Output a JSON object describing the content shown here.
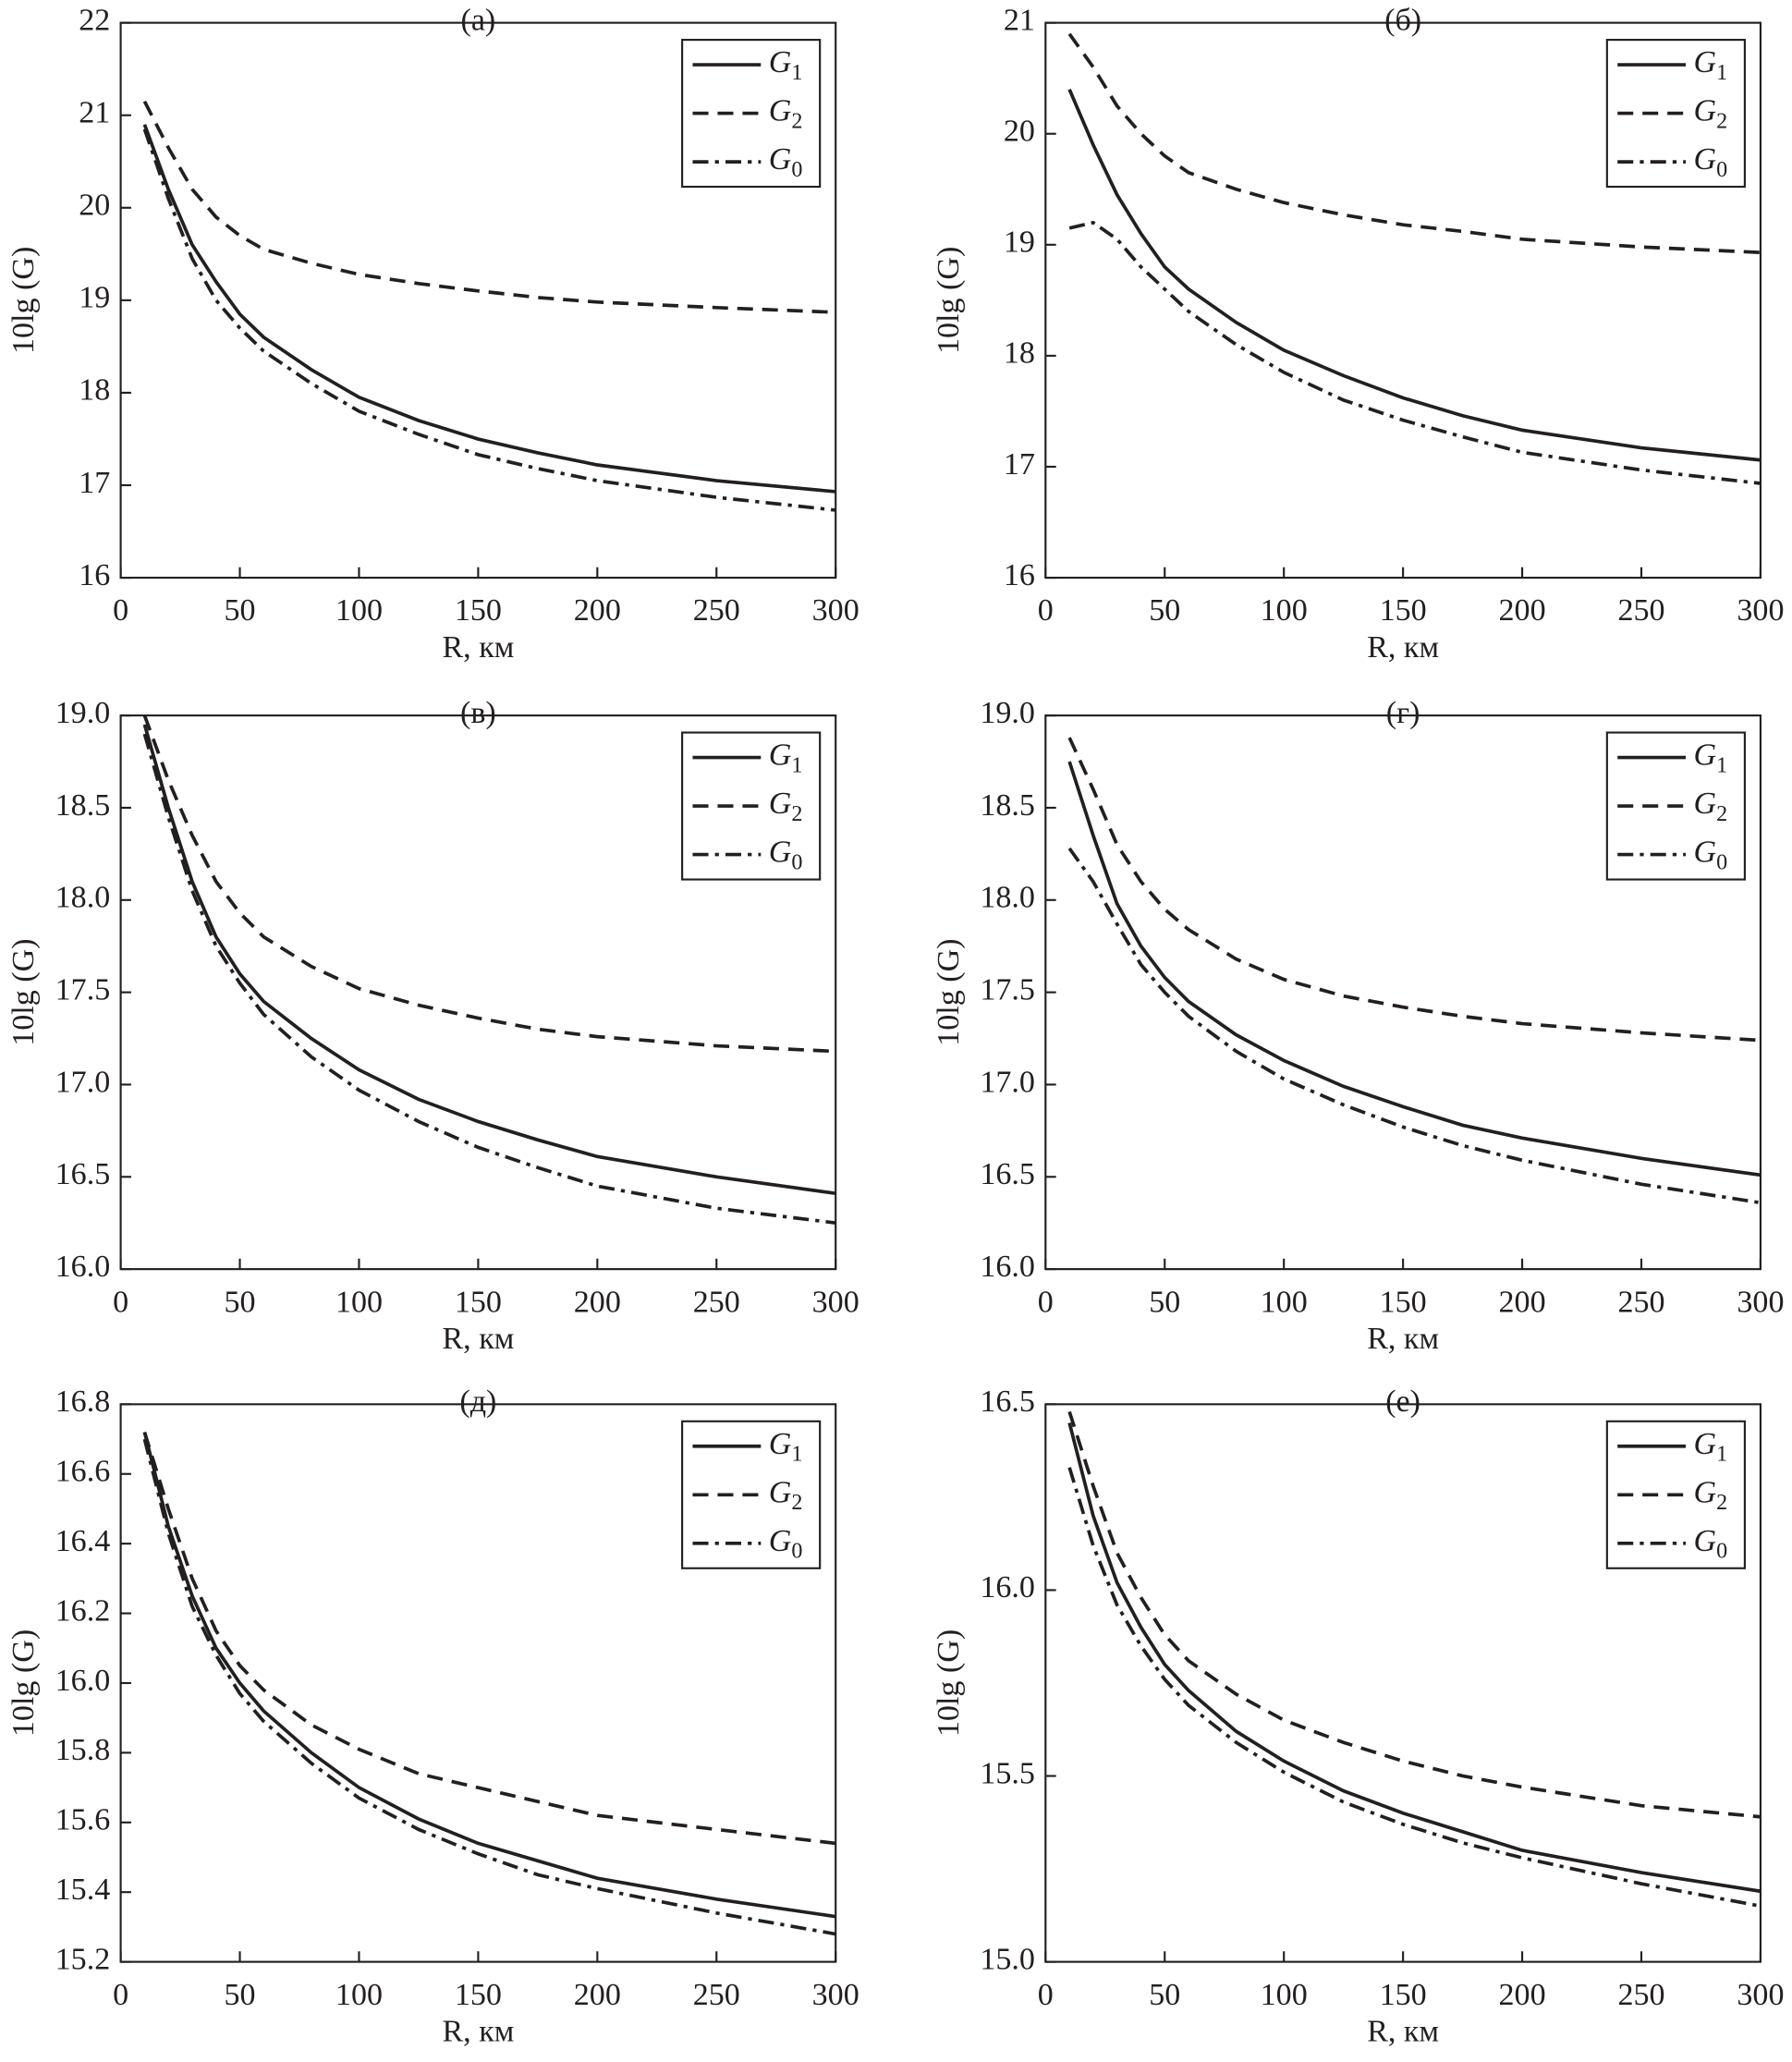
{
  "chart_data": [
    {
      "type": "line",
      "title": "(а)",
      "xlabel": "R, км",
      "ylabel": "10lg (G)",
      "x": [
        10,
        20,
        30,
        40,
        50,
        60,
        80,
        100,
        125,
        150,
        175,
        200,
        250,
        300
      ],
      "xlim": [
        0,
        300
      ],
      "xticks": [
        0,
        50,
        100,
        150,
        200,
        250,
        300
      ],
      "ylim": [
        16,
        22
      ],
      "yticks": [
        16,
        17,
        18,
        19,
        20,
        21,
        22
      ],
      "series": [
        {
          "name": "G1",
          "color": "#231f20",
          "linestyle": "solid",
          "values": [
            20.9,
            20.2,
            19.6,
            19.2,
            18.85,
            18.6,
            18.25,
            17.95,
            17.7,
            17.5,
            17.35,
            17.22,
            17.05,
            16.93
          ]
        },
        {
          "name": "G2",
          "color": "#231f20",
          "linestyle": "dashed",
          "values": [
            21.15,
            20.65,
            20.2,
            19.9,
            19.7,
            19.55,
            19.4,
            19.28,
            19.18,
            19.1,
            19.03,
            18.98,
            18.92,
            18.87
          ]
        },
        {
          "name": "G0",
          "color": "#231f20",
          "linestyle": "dashdot",
          "values": [
            20.85,
            20.1,
            19.45,
            19.0,
            18.7,
            18.45,
            18.1,
            17.8,
            17.55,
            17.33,
            17.18,
            17.05,
            16.87,
            16.73
          ]
        }
      ]
    },
    {
      "type": "line",
      "title": "(б)",
      "xlabel": "R, км",
      "ylabel": "10lg (G)",
      "x": [
        10,
        20,
        30,
        40,
        50,
        60,
        80,
        100,
        125,
        150,
        175,
        200,
        250,
        300
      ],
      "xlim": [
        0,
        300
      ],
      "xticks": [
        0,
        50,
        100,
        150,
        200,
        250,
        300
      ],
      "ylim": [
        16,
        21
      ],
      "yticks": [
        16,
        17,
        18,
        19,
        20,
        21
      ],
      "series": [
        {
          "name": "G1",
          "color": "#231f20",
          "linestyle": "solid",
          "values": [
            20.4,
            19.9,
            19.45,
            19.1,
            18.8,
            18.6,
            18.3,
            18.05,
            17.82,
            17.62,
            17.46,
            17.33,
            17.17,
            17.06
          ]
        },
        {
          "name": "G2",
          "color": "#231f20",
          "linestyle": "dashed",
          "values": [
            20.9,
            20.6,
            20.25,
            20.0,
            19.8,
            19.65,
            19.5,
            19.38,
            19.27,
            19.18,
            19.12,
            19.05,
            18.98,
            18.93
          ]
        },
        {
          "name": "G0",
          "color": "#231f20",
          "linestyle": "dashdot",
          "values": [
            19.15,
            19.2,
            19.05,
            18.8,
            18.6,
            18.4,
            18.1,
            17.85,
            17.6,
            17.42,
            17.27,
            17.13,
            16.97,
            16.85
          ]
        }
      ]
    },
    {
      "type": "line",
      "title": "(в)",
      "xlabel": "R, км",
      "ylabel": "10lg (G)",
      "x": [
        10,
        20,
        30,
        40,
        50,
        60,
        80,
        100,
        125,
        150,
        175,
        200,
        250,
        300
      ],
      "xlim": [
        0,
        300
      ],
      "xticks": [
        0,
        50,
        100,
        150,
        200,
        250,
        300
      ],
      "ylim": [
        16,
        19
      ],
      "yticks": [
        {
          "value": 16,
          "label": "16.0"
        },
        16.5,
        {
          "value": 17,
          "label": "17.0"
        },
        17.5,
        {
          "value": 18,
          "label": "18.0"
        },
        18.5,
        {
          "value": 19,
          "label": "19.0"
        }
      ],
      "series": [
        {
          "name": "G1",
          "color": "#231f20",
          "linestyle": "solid",
          "values": [
            18.95,
            18.5,
            18.1,
            17.8,
            17.6,
            17.45,
            17.25,
            17.08,
            16.92,
            16.8,
            16.7,
            16.61,
            16.5,
            16.41
          ]
        },
        {
          "name": "G2",
          "color": "#231f20",
          "linestyle": "dashed",
          "values": [
            19.0,
            18.65,
            18.35,
            18.1,
            17.93,
            17.8,
            17.64,
            17.52,
            17.43,
            17.36,
            17.3,
            17.26,
            17.21,
            17.18
          ]
        },
        {
          "name": "G0",
          "color": "#231f20",
          "linestyle": "dashdot",
          "values": [
            18.9,
            18.45,
            18.05,
            17.75,
            17.55,
            17.38,
            17.15,
            16.97,
            16.8,
            16.66,
            16.55,
            16.45,
            16.33,
            16.25
          ]
        }
      ]
    },
    {
      "type": "line",
      "title": "(г)",
      "xlabel": "R, км",
      "ylabel": "10lg (G)",
      "x": [
        10,
        20,
        30,
        40,
        50,
        60,
        80,
        100,
        125,
        150,
        175,
        200,
        250,
        300
      ],
      "xlim": [
        0,
        300
      ],
      "xticks": [
        0,
        50,
        100,
        150,
        200,
        250,
        300
      ],
      "ylim": [
        16,
        19
      ],
      "yticks": [
        {
          "value": 16,
          "label": "16.0"
        },
        16.5,
        {
          "value": 17,
          "label": "17.0"
        },
        17.5,
        {
          "value": 18,
          "label": "18.0"
        },
        18.5,
        {
          "value": 19,
          "label": "19.0"
        }
      ],
      "series": [
        {
          "name": "G1",
          "color": "#231f20",
          "linestyle": "solid",
          "values": [
            18.75,
            18.35,
            17.98,
            17.75,
            17.58,
            17.45,
            17.27,
            17.13,
            16.99,
            16.88,
            16.78,
            16.71,
            16.6,
            16.51
          ]
        },
        {
          "name": "G2",
          "color": "#231f20",
          "linestyle": "dashed",
          "values": [
            18.88,
            18.6,
            18.3,
            18.1,
            17.95,
            17.84,
            17.68,
            17.57,
            17.48,
            17.42,
            17.37,
            17.33,
            17.28,
            17.24
          ]
        },
        {
          "name": "G0",
          "color": "#231f20",
          "linestyle": "dashdot",
          "values": [
            18.28,
            18.1,
            17.87,
            17.65,
            17.5,
            17.37,
            17.18,
            17.03,
            16.89,
            16.77,
            16.67,
            16.59,
            16.46,
            16.36
          ]
        }
      ]
    },
    {
      "type": "line",
      "title": "(д)",
      "xlabel": "R, км",
      "ylabel": "10lg (G)",
      "x": [
        10,
        20,
        30,
        40,
        50,
        60,
        80,
        100,
        125,
        150,
        175,
        200,
        250,
        300
      ],
      "xlim": [
        0,
        300
      ],
      "xticks": [
        0,
        50,
        100,
        150,
        200,
        250,
        300
      ],
      "ylim": [
        15.2,
        16.8
      ],
      "yticks": [
        15.2,
        15.4,
        15.6,
        15.8,
        {
          "value": 16,
          "label": "16.0"
        },
        16.2,
        16.4,
        16.6,
        16.8
      ],
      "series": [
        {
          "name": "G1",
          "color": "#231f20",
          "linestyle": "solid",
          "values": [
            16.72,
            16.45,
            16.25,
            16.1,
            16.0,
            15.92,
            15.8,
            15.7,
            15.61,
            15.54,
            15.49,
            15.44,
            15.38,
            15.33
          ]
        },
        {
          "name": "G2",
          "color": "#231f20",
          "linestyle": "dashed",
          "values": [
            16.72,
            16.5,
            16.3,
            16.15,
            16.05,
            15.98,
            15.88,
            15.81,
            15.74,
            15.7,
            15.66,
            15.62,
            15.58,
            15.54
          ]
        },
        {
          "name": "G0",
          "color": "#231f20",
          "linestyle": "dashdot",
          "values": [
            16.7,
            16.43,
            16.22,
            16.08,
            15.97,
            15.89,
            15.77,
            15.67,
            15.58,
            15.51,
            15.45,
            15.41,
            15.34,
            15.28
          ]
        }
      ]
    },
    {
      "type": "line",
      "title": "(е)",
      "xlabel": "R, км",
      "ylabel": "10lg (G)",
      "x": [
        10,
        20,
        30,
        40,
        50,
        60,
        80,
        100,
        125,
        150,
        175,
        200,
        250,
        300
      ],
      "xlim": [
        0,
        300
      ],
      "xticks": [
        0,
        50,
        100,
        150,
        200,
        250,
        300
      ],
      "ylim": [
        15,
        16.5
      ],
      "yticks": [
        {
          "value": 15,
          "label": "15.0"
        },
        15.5,
        {
          "value": 16,
          "label": "16.0"
        },
        16.5
      ],
      "series": [
        {
          "name": "G1",
          "color": "#231f20",
          "linestyle": "solid",
          "values": [
            16.45,
            16.2,
            16.02,
            15.9,
            15.8,
            15.73,
            15.62,
            15.54,
            15.46,
            15.4,
            15.35,
            15.3,
            15.24,
            15.19
          ]
        },
        {
          "name": "G2",
          "color": "#231f20",
          "linestyle": "dashed",
          "values": [
            16.48,
            16.28,
            16.1,
            15.98,
            15.88,
            15.81,
            15.72,
            15.65,
            15.59,
            15.54,
            15.5,
            15.47,
            15.42,
            15.39
          ]
        },
        {
          "name": "G0",
          "color": "#231f20",
          "linestyle": "dashdot",
          "values": [
            16.33,
            16.12,
            15.96,
            15.85,
            15.76,
            15.69,
            15.59,
            15.51,
            15.43,
            15.37,
            15.32,
            15.28,
            15.21,
            15.15
          ]
        }
      ]
    }
  ]
}
